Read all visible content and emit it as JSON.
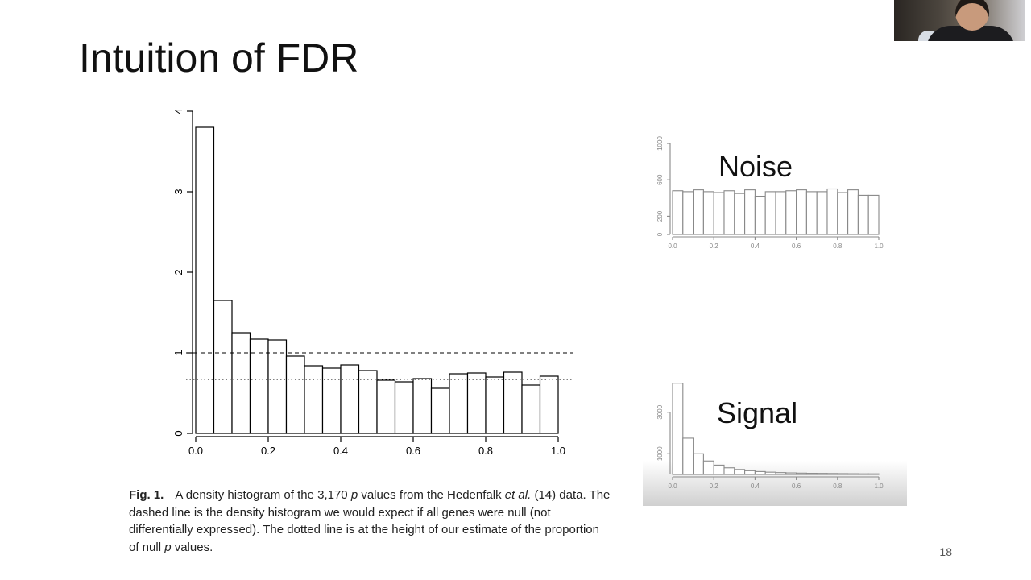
{
  "slide": {
    "title": "Intuition of FDR",
    "page_number": "18",
    "noise_label": "Noise",
    "signal_label": "Signal"
  },
  "caption": {
    "fig_label": "Fig. 1.",
    "text_1": "A density histogram of the 3,170 ",
    "p1": "p",
    "text_2": " values from the Hedenfalk ",
    "etal": "et al.",
    "text_3": " (14) data. The dashed line is the density histogram we would expect if all genes were null (not differentially expressed). The dotted line is at the height of our estimate of the proportion of null ",
    "p2": "p",
    "text_4": " values."
  },
  "colors": {
    "bar_fill": "#ffffff",
    "bar_stroke": "#000000",
    "mini_stroke": "#8a8a8a"
  },
  "chart_data": [
    {
      "type": "bar",
      "id": "main-histogram",
      "x_bin_edges": [
        0.0,
        0.05,
        0.1,
        0.15,
        0.2,
        0.25,
        0.3,
        0.35,
        0.4,
        0.45,
        0.5,
        0.55,
        0.6,
        0.65,
        0.7,
        0.75,
        0.8,
        0.85,
        0.9,
        0.95,
        1.0
      ],
      "values": [
        3.8,
        1.65,
        1.25,
        1.17,
        1.16,
        0.96,
        0.84,
        0.81,
        0.85,
        0.78,
        0.66,
        0.64,
        0.68,
        0.56,
        0.74,
        0.75,
        0.7,
        0.76,
        0.6,
        0.71
      ],
      "xlim": [
        0.0,
        1.0
      ],
      "ylim": [
        0,
        4
      ],
      "x_ticks": [
        "0.0",
        "0.2",
        "0.4",
        "0.6",
        "0.8",
        "1.0"
      ],
      "y_ticks": [
        "0",
        "1",
        "2",
        "3",
        "4"
      ],
      "reference_lines": [
        {
          "style": "dashed",
          "y": 1.0
        },
        {
          "style": "dotted",
          "y": 0.67
        }
      ],
      "grid": false
    },
    {
      "type": "bar",
      "id": "noise-histogram",
      "x_bin_edges": [
        0.0,
        0.05,
        0.1,
        0.15,
        0.2,
        0.25,
        0.3,
        0.35,
        0.4,
        0.45,
        0.5,
        0.55,
        0.6,
        0.65,
        0.7,
        0.75,
        0.8,
        0.85,
        0.9,
        0.95,
        1.0
      ],
      "values": [
        480,
        470,
        490,
        470,
        460,
        480,
        450,
        490,
        420,
        470,
        470,
        480,
        490,
        470,
        470,
        500,
        460,
        490,
        430,
        430
      ],
      "xlim": [
        0.0,
        1.0
      ],
      "ylim": [
        0,
        1000
      ],
      "x_ticks": [
        "0.0",
        "0.2",
        "0.4",
        "0.6",
        "0.8",
        "1.0"
      ],
      "y_ticks": [
        "0",
        "200",
        "600",
        "1000"
      ]
    },
    {
      "type": "bar",
      "id": "signal-histogram",
      "x_bin_edges": [
        0.0,
        0.05,
        0.1,
        0.15,
        0.2,
        0.25,
        0.3,
        0.35,
        0.4,
        0.45,
        0.5,
        0.55,
        0.6,
        0.65,
        0.7,
        0.75,
        0.8,
        0.85,
        0.9,
        0.95,
        1.0
      ],
      "values": [
        4400,
        1750,
        1000,
        650,
        450,
        320,
        240,
        180,
        140,
        110,
        90,
        75,
        65,
        55,
        50,
        45,
        40,
        35,
        30,
        30
      ],
      "xlim": [
        0.0,
        1.0
      ],
      "ylim": [
        0,
        4000
      ],
      "x_ticks": [
        "0.0",
        "0.2",
        "0.4",
        "0.6",
        "0.8",
        "1.0"
      ],
      "y_ticks": [
        "1000",
        "3000"
      ]
    }
  ]
}
